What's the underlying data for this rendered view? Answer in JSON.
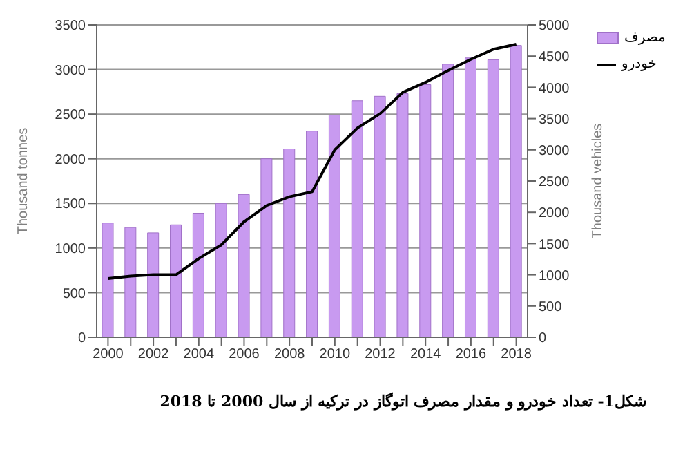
{
  "chart_data": {
    "type": "bar",
    "categories": [
      "2000",
      null,
      "2002",
      null,
      "2004",
      null,
      "2006",
      null,
      "2008",
      null,
      "2010",
      null,
      "2012",
      null,
      "2014",
      null,
      "2016",
      null,
      "2018"
    ],
    "series": [
      {
        "name": "مصرف",
        "color": "#c89af0",
        "values": [
          1280,
          1230,
          1170,
          1260,
          1390,
          1500,
          1600,
          2000,
          2110,
          2310,
          2490,
          2650,
          2700,
          2730,
          2830,
          3060,
          3130,
          3110,
          3270
        ]
      },
      {
        "name": "خودرو",
        "type": "line",
        "axis": "y2",
        "color": "#000000",
        "values": [
          940,
          980,
          1000,
          1000,
          1260,
          1480,
          1850,
          2110,
          2250,
          2330,
          3000,
          3350,
          3580,
          3920,
          4080,
          4270,
          4450,
          4610,
          4690
        ]
      }
    ],
    "ylabel": "Thousand tonnes",
    "y2label": "Thousand vehicles",
    "ylim": [
      0,
      3500
    ],
    "yticks": [
      0,
      500,
      1000,
      1500,
      2000,
      2500,
      3000,
      3500
    ],
    "y2lim": [
      0,
      5000
    ],
    "y2ticks": [
      0,
      500,
      1000,
      1500,
      2000,
      2500,
      3000,
      3500,
      4000,
      4500,
      5000
    ],
    "grid": "y",
    "legend": "top right",
    "marker": "none",
    "annotations": [
      "شکل1- تعداد خودرو و مقدار مصرف اتوگاز در ترکیه از  سال 2000 تا 2018"
    ]
  }
}
